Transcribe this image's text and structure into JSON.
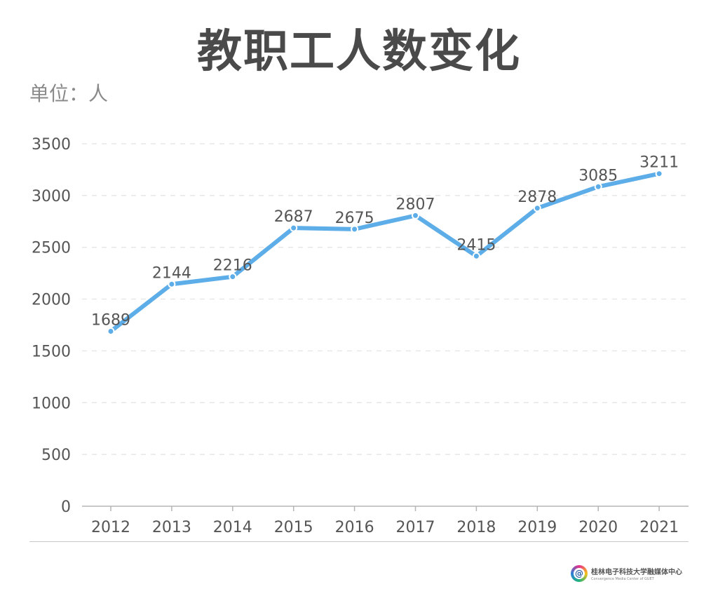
{
  "title": "教职工人数变化",
  "unit_label": "单位：人",
  "brand": {
    "name": "桂林电子科技大学融媒体中心",
    "subtitle": "Convergence Media Center of GUET",
    "logo_glyph": "@"
  },
  "colors": {
    "line": "#5dade8",
    "title": "#4a4a4a",
    "unit": "#8a8a8a",
    "axis_text": "#555555",
    "grid": "#e2e2e2"
  },
  "chart_data": {
    "type": "line",
    "categories": [
      "2012",
      "2013",
      "2014",
      "2015",
      "2016",
      "2017",
      "2018",
      "2019",
      "2020",
      "2021"
    ],
    "series": [
      {
        "values": [
          1689,
          2144,
          2216,
          2687,
          2675,
          2807,
          2415,
          2878,
          3085,
          3211
        ]
      }
    ],
    "yticks": [
      0,
      500,
      1000,
      1500,
      2000,
      2500,
      3000,
      3500
    ],
    "ylim": [
      0,
      3500
    ],
    "grid": true,
    "grid_style": "dashed",
    "data_labels": true,
    "legend": "none"
  }
}
